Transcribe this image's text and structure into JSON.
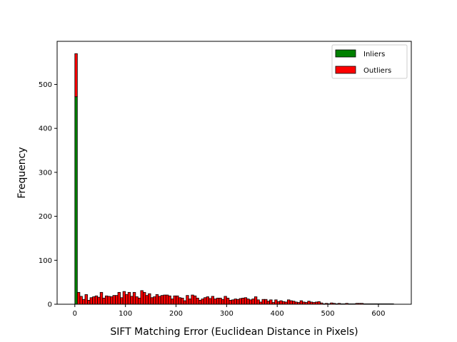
{
  "chart_data": {
    "type": "bar",
    "subtype": "stacked-histogram",
    "title": "",
    "xlabel": "SIFT Matching Error (Euclidean Distance in Pixels)",
    "ylabel": "Frequency",
    "xlim": [
      -35,
      665
    ],
    "ylim": [
      0,
      598
    ],
    "xticks": [
      0,
      100,
      200,
      300,
      400,
      500,
      600
    ],
    "yticks": [
      0,
      100,
      200,
      300,
      400,
      500
    ],
    "grid": false,
    "legend_position": "top-right",
    "bin_width": 5,
    "bin_start": 0,
    "series": [
      {
        "name": "Inliers",
        "color": "#008000",
        "values": [
          472
        ]
      },
      {
        "name": "Outliers",
        "color": "#ff0000",
        "values": [
          98,
          27,
          18,
          11,
          22,
          9,
          15,
          17,
          19,
          16,
          27,
          14,
          19,
          18,
          17,
          20,
          20,
          27,
          15,
          29,
          22,
          27,
          18,
          27,
          17,
          14,
          31,
          27,
          20,
          24,
          15,
          17,
          22,
          18,
          20,
          21,
          21,
          19,
          12,
          19,
          19,
          15,
          14,
          8,
          20,
          12,
          21,
          19,
          14,
          9,
          12,
          15,
          17,
          13,
          18,
          12,
          14,
          14,
          11,
          18,
          14,
          9,
          10,
          12,
          11,
          13,
          14,
          15,
          12,
          10,
          12,
          17,
          10,
          5,
          11,
          11,
          7,
          10,
          4,
          10,
          6,
          8,
          6,
          5,
          10,
          8,
          7,
          5,
          4,
          8,
          5,
          4,
          7,
          5,
          4,
          5,
          6,
          3,
          1,
          2,
          1,
          3,
          2,
          1,
          2,
          1,
          1,
          2,
          1,
          1,
          1,
          2,
          2,
          2,
          1,
          1,
          1,
          1,
          1,
          1,
          1,
          1,
          1,
          1,
          1,
          1
        ]
      }
    ]
  }
}
